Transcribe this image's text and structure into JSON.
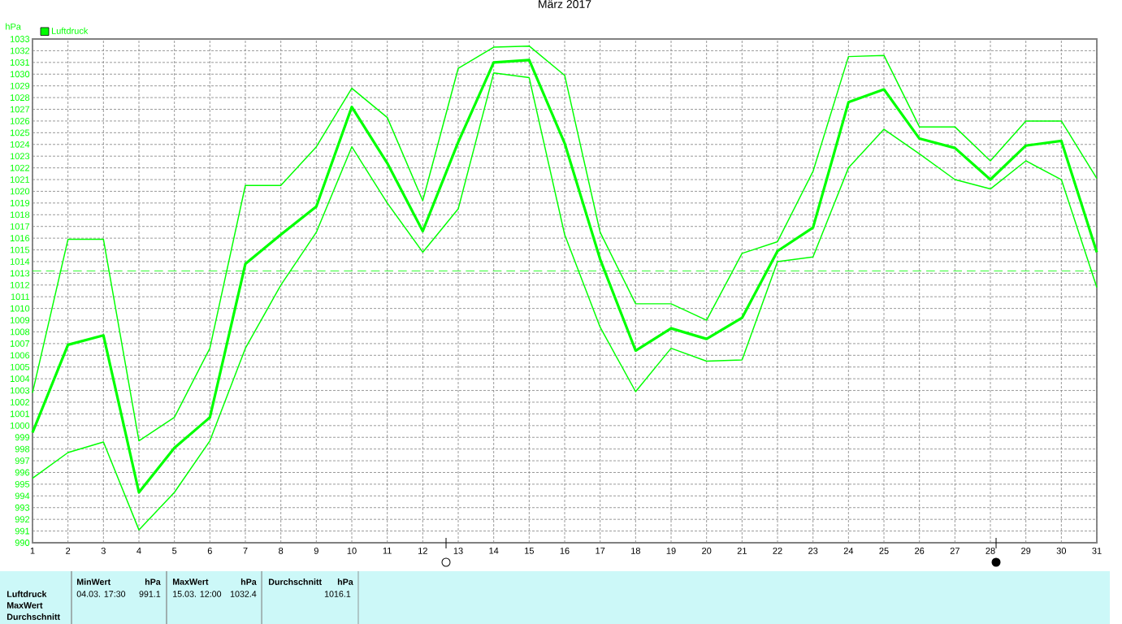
{
  "chart_data": {
    "type": "line",
    "title": "März 2017",
    "ylabel": "hPa",
    "x": [
      1,
      2,
      3,
      4,
      5,
      6,
      7,
      8,
      9,
      10,
      11,
      12,
      13,
      14,
      15,
      16,
      17,
      18,
      19,
      20,
      21,
      22,
      23,
      24,
      25,
      26,
      27,
      28,
      29,
      30,
      31
    ],
    "xlim": [
      1,
      31
    ],
    "xticks": [
      1,
      2,
      3,
      4,
      5,
      6,
      7,
      8,
      9,
      10,
      11,
      12,
      13,
      14,
      15,
      16,
      17,
      18,
      19,
      20,
      21,
      22,
      23,
      24,
      25,
      26,
      27,
      28,
      29,
      30,
      31
    ],
    "ylim": [
      990,
      1033
    ],
    "yticks": [
      990,
      991,
      992,
      993,
      994,
      995,
      996,
      997,
      998,
      999,
      1000,
      1001,
      1002,
      1003,
      1004,
      1005,
      1006,
      1007,
      1008,
      1009,
      1010,
      1011,
      1012,
      1013,
      1014,
      1015,
      1016,
      1017,
      1018,
      1019,
      1020,
      1021,
      1022,
      1023,
      1024,
      1025,
      1026,
      1027,
      1028,
      1029,
      1030,
      1031,
      1032,
      1033
    ],
    "series": [
      {
        "color": "#00ff00",
        "values": [
          1002.8,
          1015.9,
          1015.9,
          998.7,
          1000.7,
          1006.6,
          1020.5,
          1020.5,
          1023.8,
          1028.8,
          1026.3,
          1019.2,
          1030.5,
          1032.3,
          1032.4,
          1029.9,
          1016.5,
          1010.4,
          1010.4,
          1009.0,
          1014.7,
          1015.7,
          1021.7,
          1031.5,
          1031.6,
          1025.5,
          1025.5,
          1022.6,
          1026.0,
          1026.0,
          1021.1
        ]
      },
      {
        "name": "Luftdruck",
        "color": "#00ff00",
        "values": [
          999.4,
          1006.9,
          1007.7,
          994.3,
          998.1,
          1000.7,
          1013.8,
          1016.3,
          1018.7,
          1027.2,
          1022.4,
          1016.6,
          1024.2,
          1031.0,
          1031.2,
          1024.1,
          1014.2,
          1006.4,
          1008.3,
          1007.4,
          1009.2,
          1014.9,
          1016.9,
          1027.6,
          1028.7,
          1024.5,
          1023.7,
          1021.0,
          1023.9,
          1024.3,
          1014.8
        ]
      },
      {
        "color": "#00ff00",
        "values": [
          995.5,
          997.7,
          998.6,
          991.1,
          994.3,
          998.7,
          1006.6,
          1012.0,
          1016.5,
          1023.8,
          1019.0,
          1014.8,
          1018.5,
          1030.1,
          1029.7,
          1016.3,
          1008.4,
          1002.9,
          1006.6,
          1005.5,
          1005.6,
          1014.0,
          1014.4,
          1022.0,
          1025.3,
          1023.2,
          1021.0,
          1020.2,
          1022.6,
          1021.0,
          1011.8
        ]
      }
    ],
    "ref_lines": [
      {
        "axis": "y",
        "value": 1013.2,
        "color": "#00ff00",
        "line_style": "dashed"
      }
    ],
    "grid": true,
    "legend": "top left",
    "annotations": [
      "Luftdruck",
      "MaxWert",
      "Durchschnitt",
      "MinWert",
      "hPa",
      "MaxWert",
      "hPa",
      "Durchschnitt",
      "hPa",
      "04.03. 17:30",
      "991.1",
      "15.03. 12:00",
      "1032.4",
      "1016.1"
    ]
  }
}
